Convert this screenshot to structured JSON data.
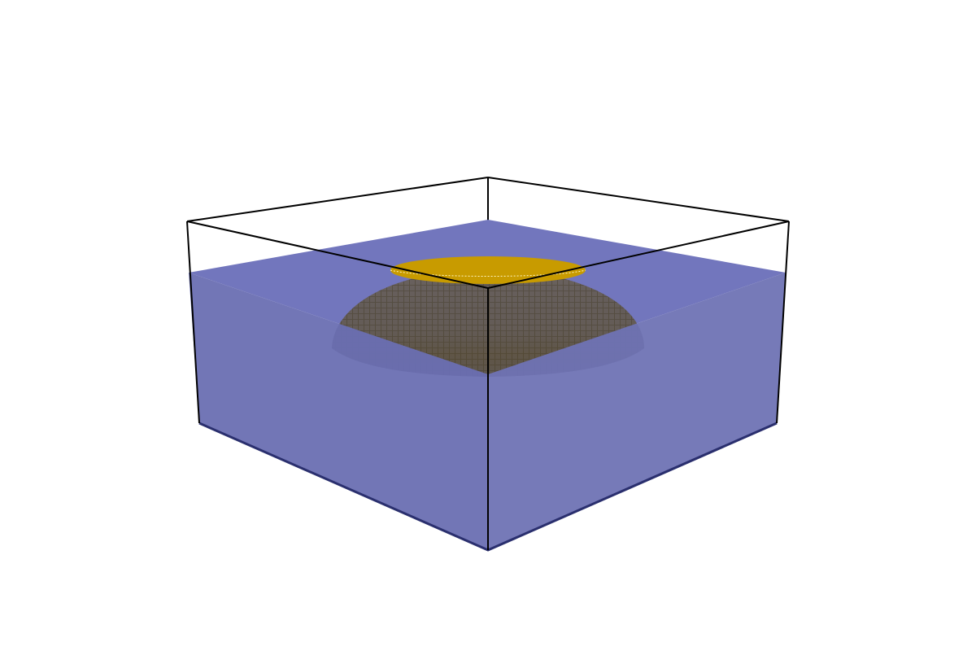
{
  "scene": {
    "background_color": "#ffffff",
    "fluid_color": "#7074b5",
    "fluid_top_color": "#7276bd",
    "fluid_edge_color": "#2a2f6e",
    "box_edge_color": "#000000",
    "dome_color": "#6b6360",
    "dome_shadow_color": "#4e463d",
    "dome_cap_color": "#c89b00",
    "icons": [
      "wireframe-box",
      "fluid-volume",
      "dome-object"
    ]
  }
}
